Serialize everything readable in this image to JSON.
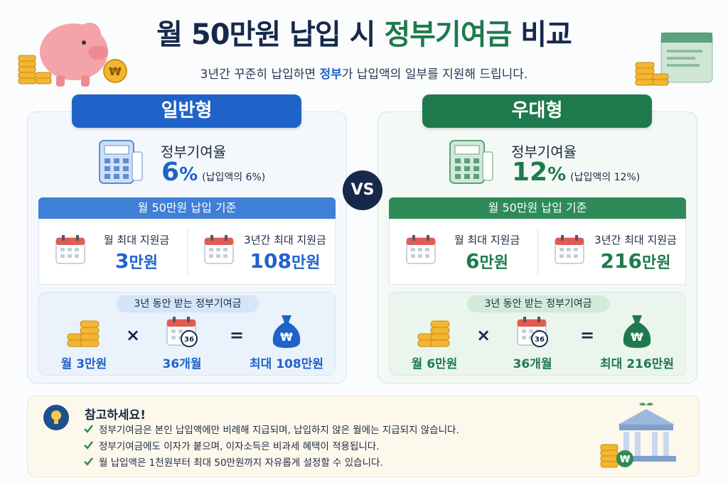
{
  "header": {
    "title_parts": [
      "월 50만원 납입 시 ",
      "정부기여금",
      " 비교"
    ],
    "subtitle_parts": [
      "3년간 꾸준히 납입하면 ",
      "정부",
      "가 납입액의 일부를 지원해 드립니다."
    ]
  },
  "panels": [
    {
      "name": "일반형",
      "rate_label": "정부기여율",
      "rate": "6",
      "rate_unit": "%",
      "rate_note": "(납입액의 6%)",
      "basis": "월 50만원 납입 기준",
      "items": [
        {
          "label": "월 최대 지원금",
          "amount": "3",
          "unit": "만원"
        },
        {
          "label": "3년간 최대 지원금",
          "amount": "108",
          "unit": "만원"
        }
      ],
      "formula_title": "3년 동안 받는 정부기여금",
      "formula": {
        "monthly": "월 3만원",
        "times": "×",
        "months_badge": "36",
        "months": "36개월",
        "equals": "=",
        "total": "최대 108만원"
      }
    },
    {
      "name": "우대형",
      "rate_label": "정부기여율",
      "rate": "12",
      "rate_unit": "%",
      "rate_note": "(납입액의 12%)",
      "basis": "월 50만원 납입 기준",
      "items": [
        {
          "label": "월 최대 지원금",
          "amount": "6",
          "unit": "만원"
        },
        {
          "label": "3년간 최대 지원금",
          "amount": "216",
          "unit": "만원"
        }
      ],
      "formula_title": "3년 동안 받는 정부기여금",
      "formula": {
        "monthly": "월 6만원",
        "times": "×",
        "months_badge": "36",
        "months": "36개월",
        "equals": "=",
        "total": "최대 216만원"
      }
    }
  ],
  "vs": "VS",
  "notice": {
    "title": "참고하세요!",
    "items": [
      "정부기여금은 본인 납입액에만 비례해 지급되며, 납입하지 않은 월에는 지급되지 않습니다.",
      "정부기여금에도 이자가 붙으며, 이자소득은 비과세 혜택이 적용됩니다.",
      "월 납입액은 1천원부터 최대 50만원까지 자유롭게 설정할 수 있습니다."
    ]
  }
}
